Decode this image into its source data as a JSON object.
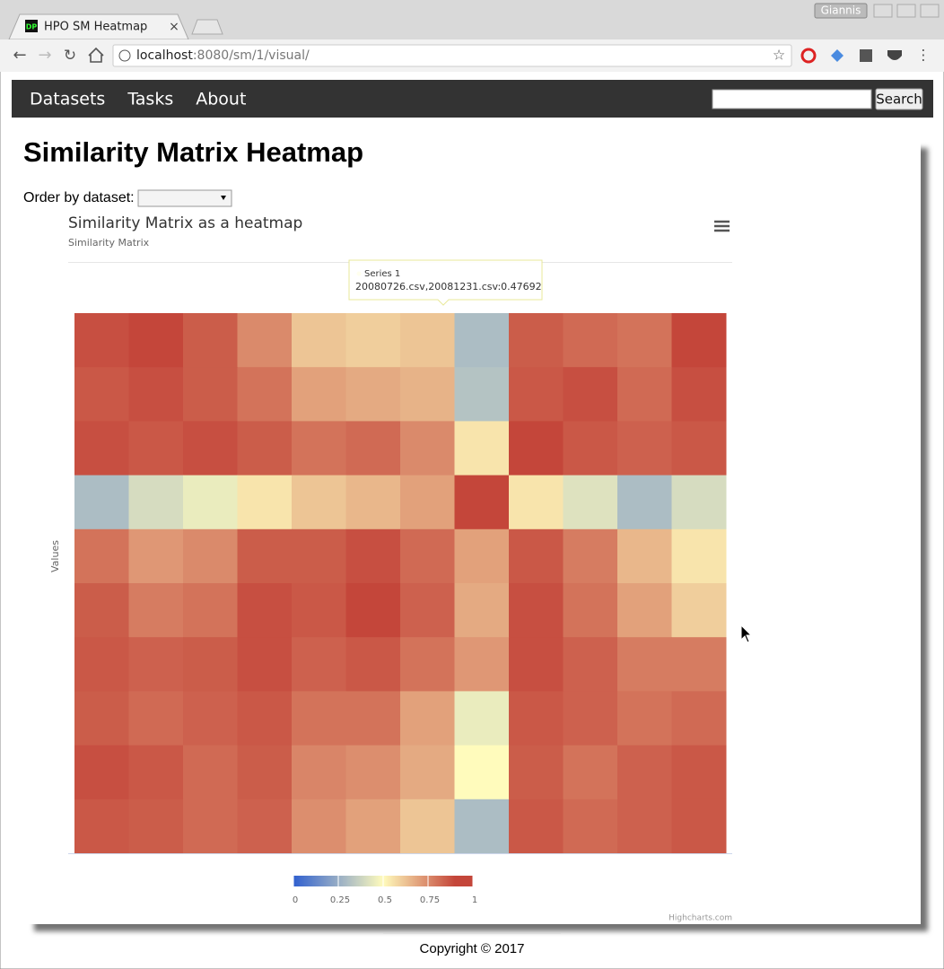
{
  "browser": {
    "tab_title": "HPO SM Heatmap",
    "user": "Giannis",
    "address": {
      "host": "localhost",
      "path": ":8080/sm/1/visual/"
    }
  },
  "navbar": {
    "links": [
      "Datasets",
      "Tasks",
      "About"
    ],
    "search_button": "Search"
  },
  "page": {
    "heading": "Similarity Matrix Heatmap",
    "order_label": "Order by dataset:",
    "footer": "Copyright © 2017"
  },
  "chart_data": {
    "type": "heatmap",
    "title": "Similarity Matrix as a heatmap",
    "subtitle": "Similarity Matrix",
    "y_label": "Values",
    "tooltip": {
      "series": "Series 1",
      "text": "20080726.csv,20081231.csv:0.47692"
    },
    "credits": "Highcharts.com",
    "values": [
      [
        0.88,
        0.9,
        0.85,
        0.75,
        0.62,
        0.6,
        0.62,
        0.3,
        0.85,
        0.82,
        0.8,
        0.92
      ],
      [
        0.86,
        0.88,
        0.85,
        0.8,
        0.7,
        0.68,
        0.66,
        0.32,
        0.86,
        0.88,
        0.82,
        0.88
      ],
      [
        0.88,
        0.86,
        0.88,
        0.85,
        0.8,
        0.82,
        0.75,
        0.55,
        0.9,
        0.86,
        0.84,
        0.86
      ],
      [
        0.3,
        0.4,
        0.45,
        0.55,
        0.62,
        0.65,
        0.7,
        0.95,
        0.55,
        0.42,
        0.3,
        0.4
      ],
      [
        0.8,
        0.72,
        0.75,
        0.85,
        0.85,
        0.88,
        0.82,
        0.7,
        0.86,
        0.78,
        0.65,
        0.55
      ],
      [
        0.85,
        0.78,
        0.8,
        0.88,
        0.86,
        0.9,
        0.84,
        0.68,
        0.88,
        0.8,
        0.7,
        0.6
      ],
      [
        0.86,
        0.84,
        0.85,
        0.88,
        0.84,
        0.86,
        0.8,
        0.72,
        0.88,
        0.84,
        0.78,
        0.78
      ],
      [
        0.85,
        0.82,
        0.84,
        0.86,
        0.8,
        0.8,
        0.7,
        0.45,
        0.86,
        0.84,
        0.8,
        0.82
      ],
      [
        0.88,
        0.86,
        0.82,
        0.85,
        0.76,
        0.74,
        0.68,
        0.5,
        0.85,
        0.8,
        0.84,
        0.86
      ],
      [
        0.86,
        0.85,
        0.82,
        0.84,
        0.74,
        0.7,
        0.62,
        0.3,
        0.86,
        0.82,
        0.84,
        0.86
      ]
    ],
    "colorlim": [
      0,
      1
    ],
    "colorticks": [
      0,
      0.25,
      0.5,
      0.75,
      1
    ],
    "color_stops": [
      {
        "value": 0,
        "color": "#3060cf"
      },
      {
        "value": 0.5,
        "color": "#fffbbc"
      },
      {
        "value": 0.9,
        "color": "#c4463a"
      }
    ]
  }
}
